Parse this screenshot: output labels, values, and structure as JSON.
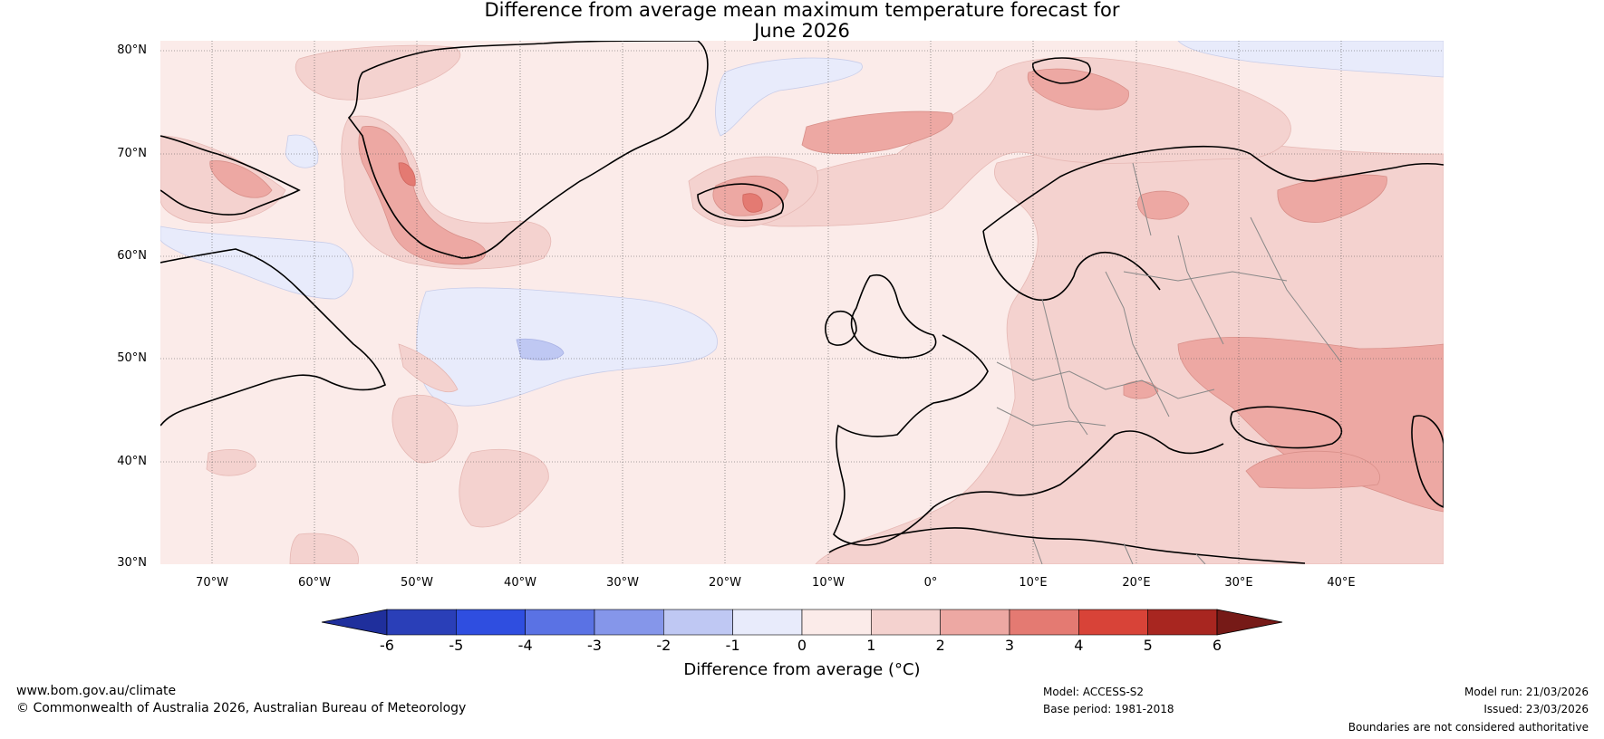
{
  "title": {
    "line1": "Difference from average mean maximum temperature forecast for",
    "line2": "June 2026"
  },
  "map": {
    "latitude_labels": [
      "80°N",
      "70°N",
      "60°N",
      "50°N",
      "40°N",
      "30°N"
    ],
    "longitude_labels": [
      "70°W",
      "60°W",
      "50°W",
      "40°W",
      "30°W",
      "20°W",
      "10°W",
      "0°",
      "10°E",
      "20°E",
      "30°E",
      "40°E"
    ],
    "extent": {
      "lon_min": -75,
      "lon_max": 50,
      "lat_min": 30,
      "lat_max": 81
    }
  },
  "colorbar": {
    "label": "Difference from average (°C)",
    "ticks": [
      "-6",
      "-5",
      "-4",
      "-3",
      "-2",
      "-1",
      "0",
      "1",
      "2",
      "3",
      "4",
      "5",
      "6"
    ],
    "colors": [
      "#1f2f9c",
      "#2a3fb8",
      "#2f4ee0",
      "#5a72e4",
      "#8596ea",
      "#bfc8f3",
      "#e8ebfb",
      "#fbebe9",
      "#f4d2cf",
      "#eda8a3",
      "#e47a72",
      "#d84338",
      "#a82620",
      "#761a17"
    ]
  },
  "footer": {
    "website": "www.bom.gov.au/climate",
    "copyright": "© Commonwealth of Australia 2026, Australian Bureau of Meteorology",
    "model": "Model: ACCESS-S2",
    "base_period": "Base period: 1981-2018",
    "model_run": "Model run: 21/03/2026",
    "issued": "Issued: 23/03/2026",
    "disclaimer": "Boundaries are not considered authoritative"
  }
}
